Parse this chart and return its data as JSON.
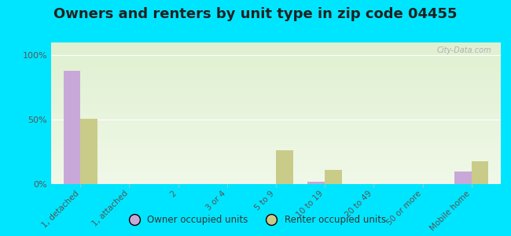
{
  "title": "Owners and renters by unit type in zip code 04455",
  "categories": [
    "1, detached",
    "1, attached",
    "2",
    "3 or 4",
    "5 to 9",
    "10 to 19",
    "20 to 49",
    "50 or more",
    "Mobile home"
  ],
  "owner_values": [
    88,
    0,
    0,
    0,
    0,
    2,
    0,
    0,
    10
  ],
  "renter_values": [
    51,
    0,
    0,
    0,
    26,
    11,
    0,
    0,
    18
  ],
  "owner_color": "#c8a8d8",
  "renter_color": "#c8cc88",
  "background_color": "#00e5ff",
  "plot_bg_color_top": "#dff0d0",
  "plot_bg_color_bottom": "#f0f8e8",
  "ylabel_ticks": [
    "0%",
    "50%",
    "100%"
  ],
  "yticks": [
    0,
    50,
    100
  ],
  "ylim": [
    0,
    110
  ],
  "bar_width": 0.35,
  "legend_owner": "Owner occupied units",
  "legend_renter": "Renter occupied units",
  "title_fontsize": 13,
  "watermark": "City-Data.com"
}
